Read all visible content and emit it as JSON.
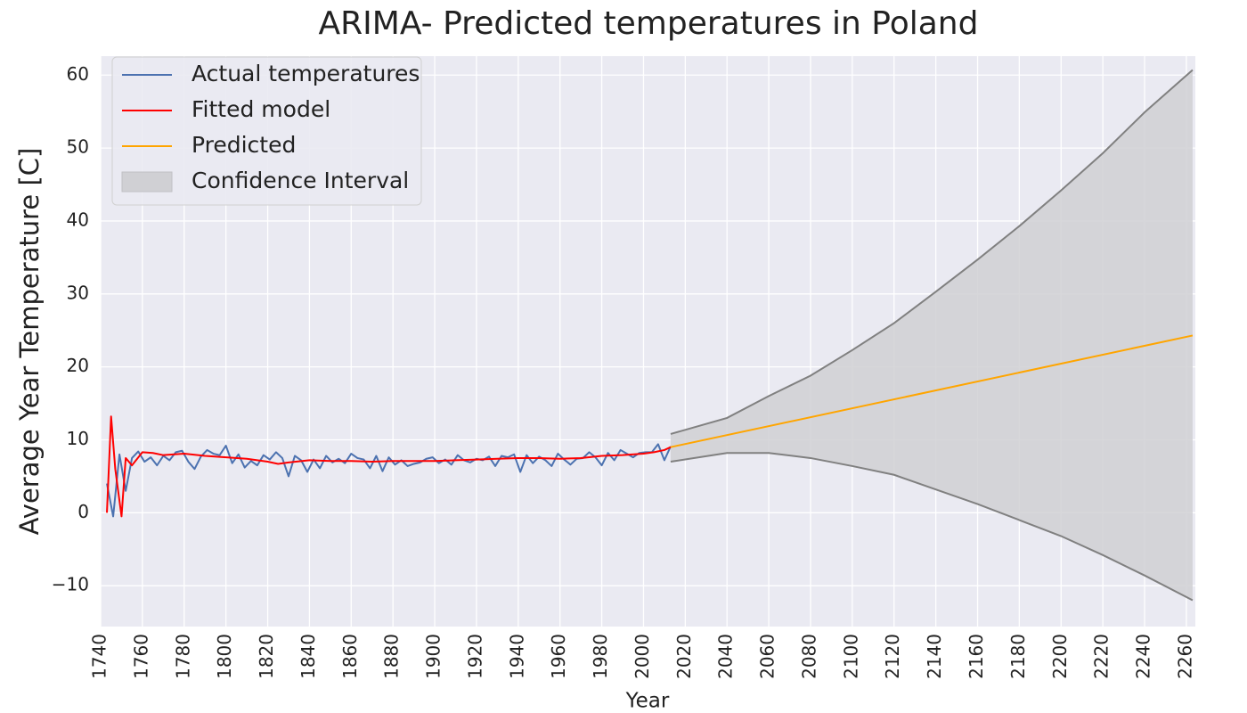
{
  "chart_data": {
    "type": "line",
    "title": "ARIMA- Predicted temperatures in Poland",
    "xlabel": "Year",
    "ylabel": "Average Year Temperature [C]",
    "xlim": [
      1740,
      2264.3
    ],
    "ylim": [
      -15.6,
      62.6
    ],
    "xticks": [
      1740,
      1760,
      1780,
      1800,
      1820,
      1840,
      1860,
      1880,
      1900,
      1920,
      1940,
      1960,
      1980,
      2000,
      2020,
      2040,
      2060,
      2080,
      2100,
      2120,
      2140,
      2160,
      2180,
      2200,
      2220,
      2240,
      2260
    ],
    "yticks": [
      {
        "value": -10,
        "label": "−10"
      },
      0,
      10,
      20,
      30,
      40,
      50,
      60
    ],
    "grid": true,
    "legend": "upper left",
    "series": [
      {
        "name": "Actual temperatures",
        "color": "#4c72b0",
        "x": [
          1743,
          1746,
          1749,
          1752,
          1755,
          1758,
          1761,
          1764,
          1767,
          1770,
          1773,
          1776,
          1779,
          1782,
          1785,
          1788,
          1791,
          1794,
          1797,
          1800,
          1803,
          1806,
          1809,
          1812,
          1815,
          1818,
          1821,
          1824,
          1827,
          1830,
          1833,
          1836,
          1839,
          1842,
          1845,
          1848,
          1851,
          1854,
          1857,
          1860,
          1863,
          1866,
          1869,
          1872,
          1875,
          1878,
          1881,
          1884,
          1887,
          1890,
          1893,
          1896,
          1899,
          1902,
          1905,
          1908,
          1911,
          1914,
          1917,
          1920,
          1923,
          1926,
          1929,
          1932,
          1935,
          1938,
          1941,
          1944,
          1947,
          1950,
          1953,
          1956,
          1959,
          1962,
          1965,
          1968,
          1971,
          1974,
          1977,
          1980,
          1983,
          1986,
          1989,
          1992,
          1995,
          1998,
          2001,
          2004,
          2007,
          2010,
          2013
        ],
        "values": [
          4,
          -0.5,
          8,
          3,
          7.5,
          8.4,
          7,
          7.6,
          6.5,
          7.8,
          7.2,
          8.3,
          8.5,
          7,
          6,
          7.7,
          8.6,
          8.1,
          7.9,
          9.2,
          6.8,
          8,
          6.2,
          7.1,
          6.5,
          7.9,
          7.3,
          8.3,
          7.5,
          5,
          7.8,
          7.2,
          5.6,
          7.3,
          6.1,
          7.8,
          6.9,
          7.4,
          6.8,
          8.1,
          7.5,
          7.3,
          6.1,
          7.8,
          5.7,
          7.6,
          6.6,
          7.2,
          6.4,
          6.7,
          6.9,
          7.4,
          7.6,
          6.8,
          7.3,
          6.6,
          7.9,
          7.2,
          6.9,
          7.4,
          7.2,
          7.7,
          6.4,
          7.8,
          7.6,
          8,
          5.6,
          7.9,
          6.8,
          7.7,
          7.2,
          6.4,
          8.1,
          7.3,
          6.6,
          7.4,
          7.5,
          8.3,
          7.6,
          6.5,
          8.2,
          7.2,
          8.6,
          8.1,
          7.6,
          8.2,
          8.3,
          8.3,
          9.4,
          7.2,
          9.1
        ]
      },
      {
        "name": "Fitted model",
        "color": "#ff0000",
        "x": [
          1743,
          1745,
          1747,
          1750,
          1752,
          1755,
          1760,
          1765,
          1770,
          1780,
          1790,
          1800,
          1810,
          1820,
          1825,
          1830,
          1840,
          1850,
          1860,
          1870,
          1880,
          1890,
          1900,
          1910,
          1920,
          1930,
          1940,
          1950,
          1960,
          1970,
          1980,
          1990,
          2000,
          2005,
          2010,
          2013
        ],
        "values": [
          0,
          13.2,
          6,
          -0.5,
          7.5,
          6.5,
          8.3,
          8.2,
          7.9,
          8.1,
          7.8,
          7.6,
          7.4,
          7,
          6.7,
          6.9,
          7.2,
          7.1,
          7.1,
          7,
          7.1,
          7.1,
          7.1,
          7.2,
          7.3,
          7.4,
          7.5,
          7.5,
          7.4,
          7.5,
          7.8,
          7.9,
          8.1,
          8.3,
          8.6,
          9
        ]
      },
      {
        "name": "Predicted",
        "color": "#ffa500",
        "x": [
          2013,
          2263
        ],
        "values": [
          9,
          24.3
        ]
      }
    ],
    "interval": {
      "name": "Confidence Interval",
      "color": "#d0d0d4",
      "edge_color": "#808080",
      "x": [
        2013,
        2040,
        2060,
        2080,
        2100,
        2120,
        2140,
        2160,
        2180,
        2200,
        2220,
        2240,
        2263
      ],
      "upper": [
        10.8,
        13,
        16,
        18.8,
        22.3,
        26,
        30.3,
        34.7,
        39.3,
        44.2,
        49.3,
        54.9,
        60.7
      ],
      "lower": [
        7,
        8.2,
        8.2,
        7.5,
        6.4,
        5.2,
        3.2,
        1.2,
        -1,
        -3.2,
        -5.8,
        -8.6,
        -12
      ]
    }
  }
}
